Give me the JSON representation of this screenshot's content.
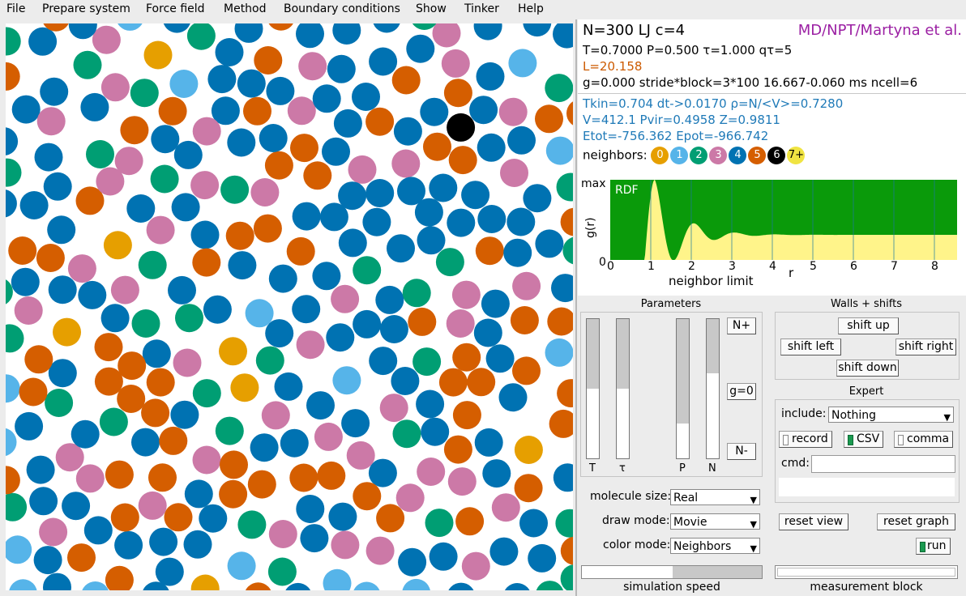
{
  "menu": [
    "File",
    "Prepare system",
    "Force field",
    "Method",
    "Boundary conditions",
    "Show",
    "Tinker",
    "Help"
  ],
  "info": {
    "title": "N=300 LJ c=4",
    "method": "MD/NPT/Martyna et al.",
    "line2": "T=0.7000 P=0.500 τ=1.000 qτ=5",
    "line3": "L=20.158",
    "line4": "g=0.000  stride*block=3*100  16.667-0.060 ms  ncell=6",
    "line5": "Tkin=0.704  dt->0.0170  ρ=N/<V>=0.7280",
    "line6": "V=412.1  Pvir=0.4958  Z=0.9811",
    "line7": "Etot=-756.362  Epot=-966.742",
    "neighbors_label": "neighbors:",
    "neighbors": [
      {
        "label": "0",
        "color": "#e69f00",
        "text": "#ffffff"
      },
      {
        "label": "1",
        "color": "#56b4e9",
        "text": "#ffffff"
      },
      {
        "label": "2",
        "color": "#009e73",
        "text": "#ffffff"
      },
      {
        "label": "3",
        "color": "#cc79a7",
        "text": "#ffffff"
      },
      {
        "label": "4",
        "color": "#0072b2",
        "text": "#ffffff"
      },
      {
        "label": "5",
        "color": "#d55e00",
        "text": "#ffffff"
      },
      {
        "label": "6",
        "color": "#000000",
        "text": "#ffffff"
      },
      {
        "label": "7+",
        "color": "#f0e442",
        "text": "#000000"
      }
    ]
  },
  "rdf": {
    "max_label": "max",
    "zero_label": "0",
    "series_label": "RDF",
    "ylabel": "g(r)",
    "xlabel": "r",
    "subtitle": "neighbor limit",
    "x_ticks": [
      "0",
      "1",
      "2",
      "3",
      "4",
      "5",
      "6",
      "7",
      "8"
    ]
  },
  "parameters": {
    "title": "Parameters",
    "btn_nplus": "N+",
    "btn_g0": "g=0",
    "btn_nminus": "N-",
    "sliders": [
      {
        "label": "T",
        "level": 0.5
      },
      {
        "label": "τ",
        "level": 0.5
      },
      {
        "label": "P",
        "level": 0.25
      },
      {
        "label": "N",
        "level": 0.61
      }
    ]
  },
  "walls": {
    "title": "Walls + shifts",
    "shift_up": "shift up",
    "shift_left": "shift left",
    "shift_right": "shift right",
    "shift_down": "shift down"
  },
  "expert": {
    "title": "Expert",
    "include_label": "include:",
    "include_value": "Nothing",
    "record": "record",
    "csv": "CSV",
    "comma": "comma",
    "cmd_label": "cmd:"
  },
  "options": {
    "molecule_size_label": "molecule size:",
    "molecule_size": "Real",
    "draw_mode_label": "draw mode:",
    "draw_mode": "Movie",
    "color_mode_label": "color mode:",
    "color_mode": "Neighbors"
  },
  "controls": {
    "reset_view": "reset view",
    "reset_graph": "reset graph",
    "run": "run",
    "simulation_speed": "simulation speed",
    "measurement_block": "measurement block"
  },
  "colors": {
    "rdf_green": "#0a9a0a",
    "rdf_yellow": "#fff48a",
    "accent_blue": "#1f7ab8",
    "accent_orange": "#cc5a00",
    "accent_purple": "#9b1fa3"
  }
}
